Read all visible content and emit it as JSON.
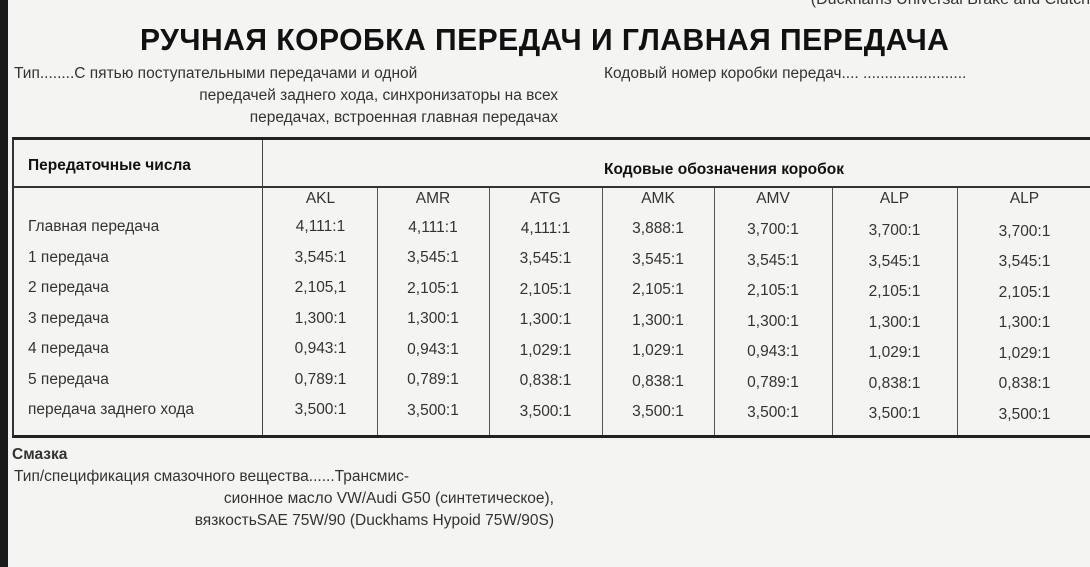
{
  "header_fragment": "(Duckhams Universal Brake and Clutch",
  "title": "РУЧНАЯ КОРОБКА ПЕРЕДАЧ И ГЛАВНАЯ ПЕРЕДАЧА",
  "type_spec": {
    "line1": "Тип........С пятью поступательными передачами и одной",
    "line2": "передачей заднего хода, синхронизаторы на всех",
    "line3": "передачах, встроенная главная передачах"
  },
  "code_number": "Кодовый номер коробки передач.... ........................",
  "table": {
    "label_header": "Передаточные числа",
    "codes_header": "Кодовые обозначения коробок",
    "codes": [
      "AKL",
      "AMR",
      "ATG",
      "AMK",
      "AMV",
      "ALP",
      "ALP"
    ],
    "rows": [
      {
        "label": "Главная передача",
        "values": [
          "4,111:1",
          "4,111:1",
          "4,111:1",
          "3,888:1",
          "3,700:1",
          "3,700:1",
          "3,700:1"
        ]
      },
      {
        "label": "1 передача",
        "values": [
          "3,545:1",
          "3,545:1",
          "3,545:1",
          "3,545:1",
          "3,545:1",
          "3,545:1",
          "3,545:1"
        ]
      },
      {
        "label": "2 передача",
        "values": [
          "2,105,1",
          "2,105:1",
          "2,105:1",
          "2,105:1",
          "2,105:1",
          "2,105:1",
          "2,105:1"
        ]
      },
      {
        "label": "3 передача",
        "values": [
          "1,300:1",
          "1,300:1",
          "1,300:1",
          "1,300:1",
          "1,300:1",
          "1,300:1",
          "1,300:1"
        ]
      },
      {
        "label": "4 передача",
        "values": [
          "0,943:1",
          "0,943:1",
          "1,029:1",
          "1,029:1",
          "0,943:1",
          "1,029:1",
          "1,029:1"
        ]
      },
      {
        "label": "5 передача",
        "values": [
          "0,789:1",
          "0,789:1",
          "0,838:1",
          "0,838:1",
          "0,789:1",
          "0,838:1",
          "0,838:1"
        ]
      },
      {
        "label": "передача заднего хода",
        "values": [
          "3,500:1",
          "3,500:1",
          "3,500:1",
          "3,500:1",
          "3,500:1",
          "3,500:1",
          "3,500:1"
        ]
      }
    ]
  },
  "lubrication": {
    "heading": "Смазка",
    "line1": "Тип/спецификация смазочного вещества......Трансмис-",
    "line2": "сионное масло VW/Audi G50 (синтетическое),",
    "line3": "вязкостьSAE 75W/90 (Duckhams Hypoid 75W/90S)"
  }
}
